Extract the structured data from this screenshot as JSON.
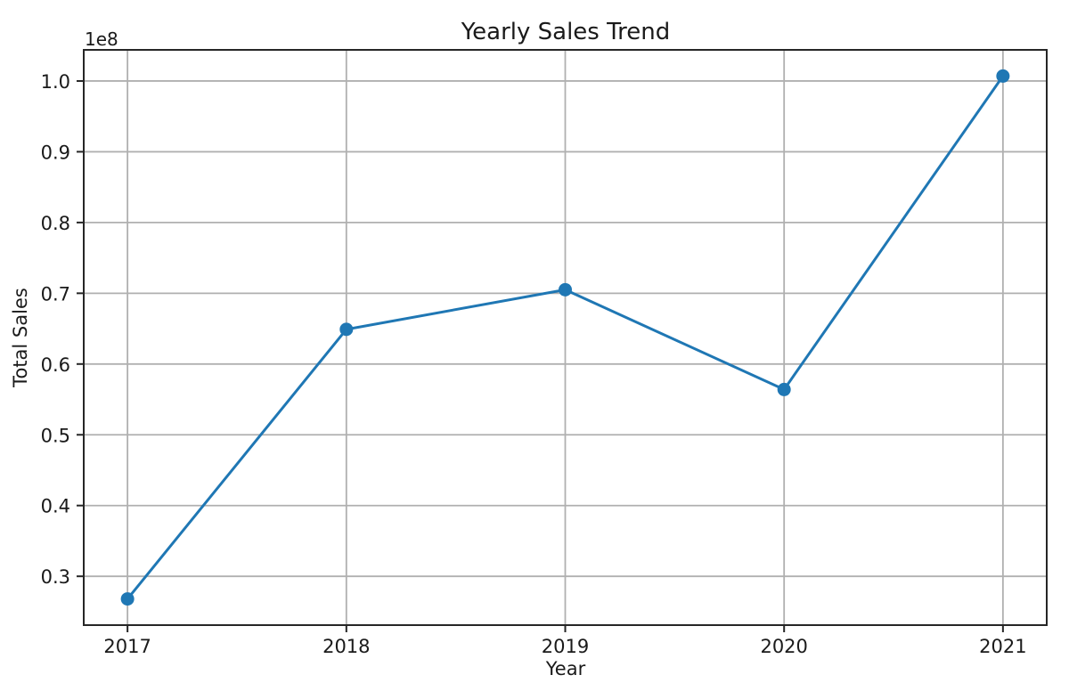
{
  "figure": {
    "background_color": "#ffffff"
  },
  "chart_data": {
    "type": "line",
    "title": "Yearly Sales Trend",
    "xlabel": "Year",
    "ylabel": "Total Sales",
    "y_offset_label": "1e8",
    "x": [
      2017,
      2018,
      2019,
      2020,
      2021
    ],
    "xtick_labels": [
      "2017",
      "2018",
      "2019",
      "2020",
      "2021"
    ],
    "values": [
      26800000,
      64900000,
      70500000,
      56400000,
      100700000
    ],
    "series_name": "Total Sales",
    "yticks": [
      30000000,
      40000000,
      50000000,
      60000000,
      70000000,
      80000000,
      90000000,
      100000000
    ],
    "ytick_labels": [
      "0.3",
      "0.4",
      "0.5",
      "0.6",
      "0.7",
      "0.8",
      "0.9",
      "1.0"
    ],
    "xlim": [
      2016.8,
      2021.2
    ],
    "ylim": [
      23100000,
      104400000
    ],
    "grid": true,
    "legend": false,
    "marker": "circle",
    "line_color": "#1f77b4",
    "grid_color": "#b0b0b0",
    "axis_color": "#262626",
    "text_color": "#1a1a1a"
  }
}
